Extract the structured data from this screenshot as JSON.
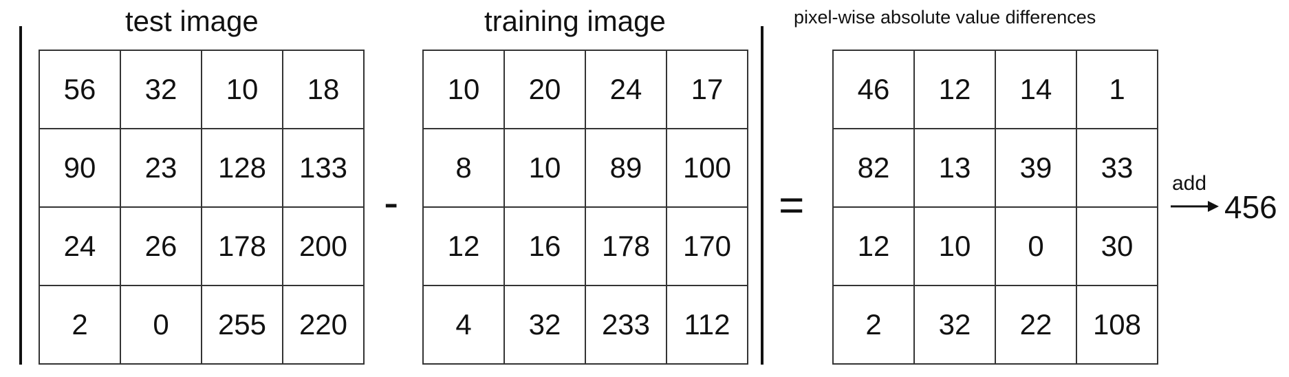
{
  "test_image": {
    "title": "test image",
    "rows": [
      [
        "56",
        "32",
        "10",
        "18"
      ],
      [
        "90",
        "23",
        "128",
        "133"
      ],
      [
        "24",
        "26",
        "178",
        "200"
      ],
      [
        "2",
        "0",
        "255",
        "220"
      ]
    ]
  },
  "minus_sign": "-",
  "training_image": {
    "title": "training image",
    "rows": [
      [
        "10",
        "20",
        "24",
        "17"
      ],
      [
        "8",
        "10",
        "89",
        "100"
      ],
      [
        "12",
        "16",
        "178",
        "170"
      ],
      [
        "4",
        "32",
        "233",
        "112"
      ]
    ]
  },
  "equals_sign": "=",
  "differences": {
    "title": "pixel-wise absolute value differences",
    "rows": [
      [
        "46",
        "12",
        "14",
        "1"
      ],
      [
        "82",
        "13",
        "39",
        "33"
      ],
      [
        "12",
        "10",
        "0",
        "30"
      ],
      [
        "2",
        "32",
        "22",
        "108"
      ]
    ]
  },
  "sum": {
    "label": "add",
    "value": "456",
    "arrow_icon": "right-arrow-icon"
  }
}
